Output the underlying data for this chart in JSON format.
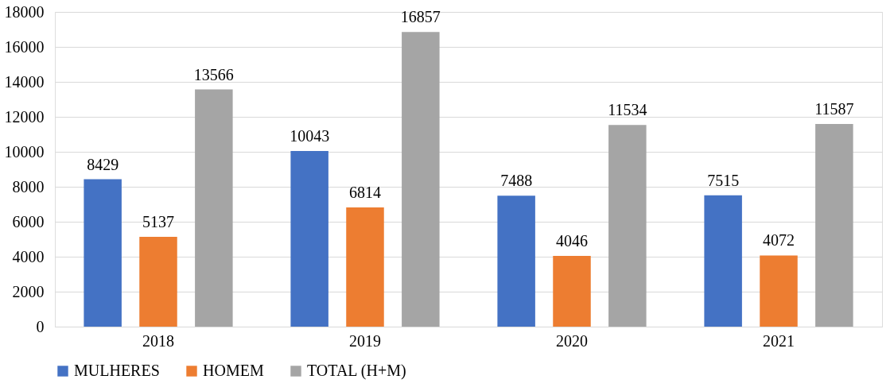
{
  "chart_data": {
    "type": "bar",
    "categories": [
      "2018",
      "2019",
      "2020",
      "2021"
    ],
    "series": [
      {
        "name": "MULHERES",
        "color": "#4472c4",
        "values": [
          8429,
          10043,
          7488,
          7515
        ]
      },
      {
        "name": "HOMEM",
        "color": "#ed7d31",
        "values": [
          5137,
          6814,
          4046,
          4072
        ]
      },
      {
        "name": "TOTAL (H+M)",
        "color": "#a5a5a5",
        "values": [
          13566,
          16857,
          11534,
          11587
        ]
      }
    ],
    "ylim": [
      0,
      18000
    ],
    "yticks": [
      0,
      2000,
      4000,
      6000,
      8000,
      10000,
      12000,
      14000,
      16000,
      18000
    ],
    "grid": "y",
    "legend": "bottom",
    "data_labels": true
  }
}
